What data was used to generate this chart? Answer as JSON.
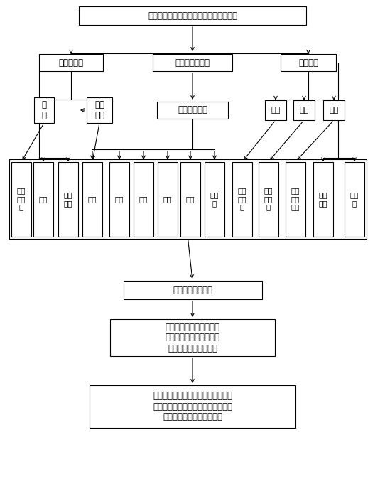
{
  "title": "区域地质图、气象资料和无人机遥感影像",
  "l2_geo": "区域地质图",
  "l2_uav": "无人机遥感影像",
  "l2_weather": "气象资料",
  "l3_duanceng": "断\n层",
  "l3_diceng": "地层\n倾向",
  "l3_dem": "数字高程模型",
  "l3_shuixi": "水系",
  "l3_daolu": "道路",
  "l3_fangwu": "房屋",
  "l4_labels": [
    "距断\n层距\n离",
    "岩性",
    "倾坡\n类型",
    "坡向",
    "高程",
    "坡位",
    "坡度",
    "曲率",
    "微地\n貌",
    "距水\n系距\n离",
    "距道\n路距\n离",
    "距离\n房屋\n距离",
    "植被\n指数",
    "降雨\n量"
  ],
  "l5": "量化和归一化处理",
  "l6": "代入至滑坡灾害发生概率\n模型，得到栅格小区对应\n的滑坡灾害发生概率值",
  "l7": "根据待评定区域内各个栅格小区的滑\n坡灾害发生概率值，确定待评定区域\n的滑坡易发性区划评定结果",
  "bg": "#ffffff",
  "ec": "#000000",
  "fc": "#ffffff"
}
